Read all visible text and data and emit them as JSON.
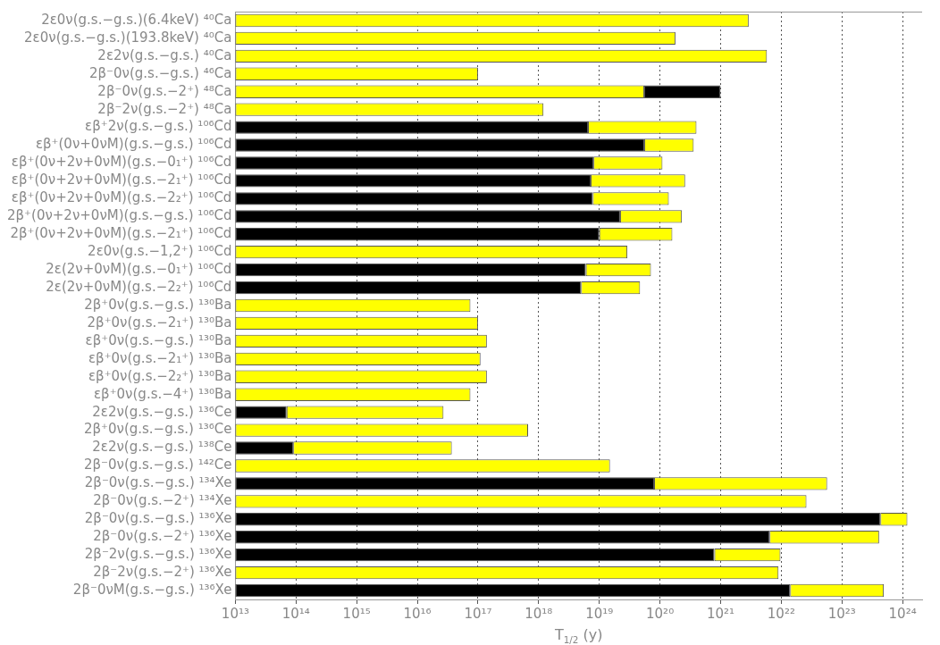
{
  "chart_data": {
    "type": "bar",
    "orientation": "horizontal",
    "stacked": true,
    "log": "x",
    "grid": "x",
    "legend": false,
    "xlabel": "T$_{1/2}$ (y)",
    "categories": [
      "2ε0ν(g.s.−g.s.)(6.4keV) ⁴⁰Ca",
      "2ε0ν(g.s.−g.s.)(193.8keV) ⁴⁰Ca",
      "2ε2ν(g.s.−g.s.) ⁴⁰Ca",
      "2β⁻0ν(g.s.−g.s.) ⁴⁶Ca",
      "2β⁻0ν(g.s.−2⁺) ⁴⁸Ca",
      "2β⁻2ν(g.s.−2⁺) ⁴⁸Ca",
      "εβ⁺2ν(g.s.−g.s.) ¹⁰⁶Cd",
      "εβ⁺(0ν+0νM)(g.s.−g.s.) ¹⁰⁶Cd",
      "εβ⁺(0ν+2ν+0νM)(g.s.−0₁⁺) ¹⁰⁶Cd",
      "εβ⁺(0ν+2ν+0νM)(g.s.−2₁⁺) ¹⁰⁶Cd",
      "εβ⁺(0ν+2ν+0νM)(g.s.−2₂⁺) ¹⁰⁶Cd",
      "2β⁺(0ν+2ν+0νM)(g.s.−g.s.) ¹⁰⁶Cd",
      "2β⁺(0ν+2ν+0νM)(g.s.−2₁⁺) ¹⁰⁶Cd",
      "2ε0ν(g.s.−1,2⁺) ¹⁰⁶Cd",
      "2ε(2ν+0νM)(g.s.−0₁⁺) ¹⁰⁶Cd",
      "2ε(2ν+0νM)(g.s.−2₂⁺) ¹⁰⁶Cd",
      "2β⁺0ν(g.s.−g.s.) ¹³⁰Ba",
      "2β⁺0ν(g.s.−2₁⁺) ¹³⁰Ba",
      "εβ⁺0ν(g.s.−g.s.) ¹³⁰Ba",
      "εβ⁺0ν(g.s.−2₁⁺) ¹³⁰Ba",
      "εβ⁺0ν(g.s.−2₂⁺) ¹³⁰Ba",
      "εβ⁺0ν(g.s.−4⁺) ¹³⁰Ba",
      "2ε2ν(g.s.−g.s.) ¹³⁶Ce",
      "2β⁺0ν(g.s.−g.s.) ¹³⁶Ce",
      "2ε2ν(g.s.−g.s.) ¹³⁸Ce",
      "2β⁻0ν(g.s.−g.s.) ¹⁴²Ce",
      "2β⁻0ν(g.s.−g.s.) ¹³⁴Xe",
      "2β⁻0ν(g.s.−2⁺) ¹³⁴Xe",
      "2β⁻0ν(g.s.−g.s.) ¹³⁶Xe",
      "2β⁻0ν(g.s.−2⁺) ¹³⁶Xe",
      "2β⁻2ν(g.s.−g.s.) ¹³⁶Xe",
      "2β⁻2ν(g.s.−2⁺) ¹³⁶Xe",
      "2β⁻0νM(g.s.−g.s.) ¹³⁶Xe"
    ],
    "series": [
      {
        "values": [
          2.9e+21,
          1.8e+20,
          5.8e+21,
          1e+17,
          5.5e+19,
          1.2e+18,
          6.5e+18,
          5.5e+19,
          8e+18,
          7.2e+18,
          7.8e+18,
          2.2e+19,
          1e+19,
          2.9e+19,
          6e+18,
          5e+18,
          7.5e+16,
          1e+17,
          1.4e+17,
          1.1e+17,
          1.4e+17,
          7.5e+16,
          70000000000000.0,
          6.7e+17,
          90000000000000.0,
          1.5e+19,
          8e+19,
          2.6e+22,
          4.3e+23,
          6.4e+21,
          7.9e+20,
          9e+21,
          1.4e+22
        ],
        "colors": [
          "#ffff00",
          "#ffff00",
          "#ffff00",
          "#ffff00",
          "#ffff00",
          "#ffff00",
          "#000000",
          "#000000",
          "#000000",
          "#000000",
          "#000000",
          "#000000",
          "#000000",
          "#ffff00",
          "#000000",
          "#000000",
          "#ffff00",
          "#ffff00",
          "#ffff00",
          "#ffff00",
          "#ffff00",
          "#ffff00",
          "#000000",
          "#ffff00",
          "#000000",
          "#ffff00",
          "#000000",
          "#ffff00",
          "#000000",
          "#000000",
          "#000000",
          "#ffff00",
          "#000000"
        ]
      },
      {
        "values": [
          null,
          null,
          null,
          null,
          9.45e+20,
          null,
          3.935e+20,
          3.05e+20,
          1.02e+20,
          2.528e+20,
          1.322e+20,
          2.08e+20,
          1.5e+20,
          null,
          6.5e+19,
          4.2e+19,
          null,
          null,
          null,
          null,
          null,
          null,
          2.693e+16,
          null,
          3.691e+16,
          null,
          5.692e+22,
          null,
          7.7e+23,
          4.036e+23,
          8.91e+21,
          null,
          4.76e+23
        ],
        "colors": [
          "#ffff00",
          "#ffff00",
          "#ffff00",
          "#ffff00",
          "#000000",
          "#ffff00",
          "#ffff00",
          "#ffff00",
          "#ffff00",
          "#ffff00",
          "#ffff00",
          "#ffff00",
          "#ffff00",
          "#ffff00",
          "#ffff00",
          "#ffff00",
          "#ffff00",
          "#ffff00",
          "#ffff00",
          "#ffff00",
          "#ffff00",
          "#ffff00",
          "#ffff00",
          "#ffff00",
          "#ffff00",
          "#ffff00",
          "#ffff00",
          "#ffff00",
          "#ffff00",
          "#ffff00",
          "#ffff00",
          "#ffff00",
          "#ffff00"
        ]
      }
    ],
    "xlim": [
      10000000000000.0,
      2.1e+24
    ],
    "xticks": [
      {
        "value": 10000000000000.0,
        "label": "10¹³"
      },
      {
        "value": 100000000000000.0,
        "label": "10¹⁴"
      },
      {
        "value": 1000000000000000.0,
        "label": "10¹⁵"
      },
      {
        "value": 1e+16,
        "label": "10¹⁶"
      },
      {
        "value": 1e+17,
        "label": "10¹⁷"
      },
      {
        "value": 1e+18,
        "label": "10¹⁸"
      },
      {
        "value": 1e+19,
        "label": "10¹⁹"
      },
      {
        "value": 1e+20,
        "label": "10²⁰"
      },
      {
        "value": 1e+21,
        "label": "10²¹"
      },
      {
        "value": 1e+22,
        "label": "10²²"
      },
      {
        "value": 1e+23,
        "label": "10²³"
      },
      {
        "value": 1e+24,
        "label": "10²⁴"
      }
    ]
  }
}
